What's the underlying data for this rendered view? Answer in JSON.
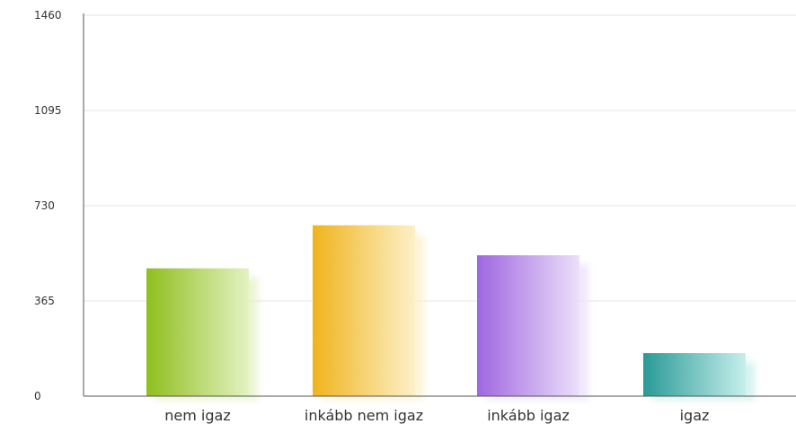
{
  "chart_data": {
    "type": "bar",
    "title": "",
    "categories": [
      "nem igaz",
      "inkább nem igaz",
      "inkább igaz",
      "igaz"
    ],
    "values": [
      490,
      655,
      540,
      165
    ],
    "ylim": [
      0,
      1460
    ],
    "yticks": [
      "0",
      "365",
      "730",
      "1095",
      "1460"
    ],
    "grid": true,
    "colors": [
      {
        "dark": "#8fbf1e",
        "light": "#e4f2c2"
      },
      {
        "dark": "#f0b41c",
        "light": "#fdf0c8"
      },
      {
        "dark": "#a066e0",
        "light": "#ece0fb"
      },
      {
        "dark": "#2a9a96",
        "light": "#c6efec"
      }
    ]
  }
}
